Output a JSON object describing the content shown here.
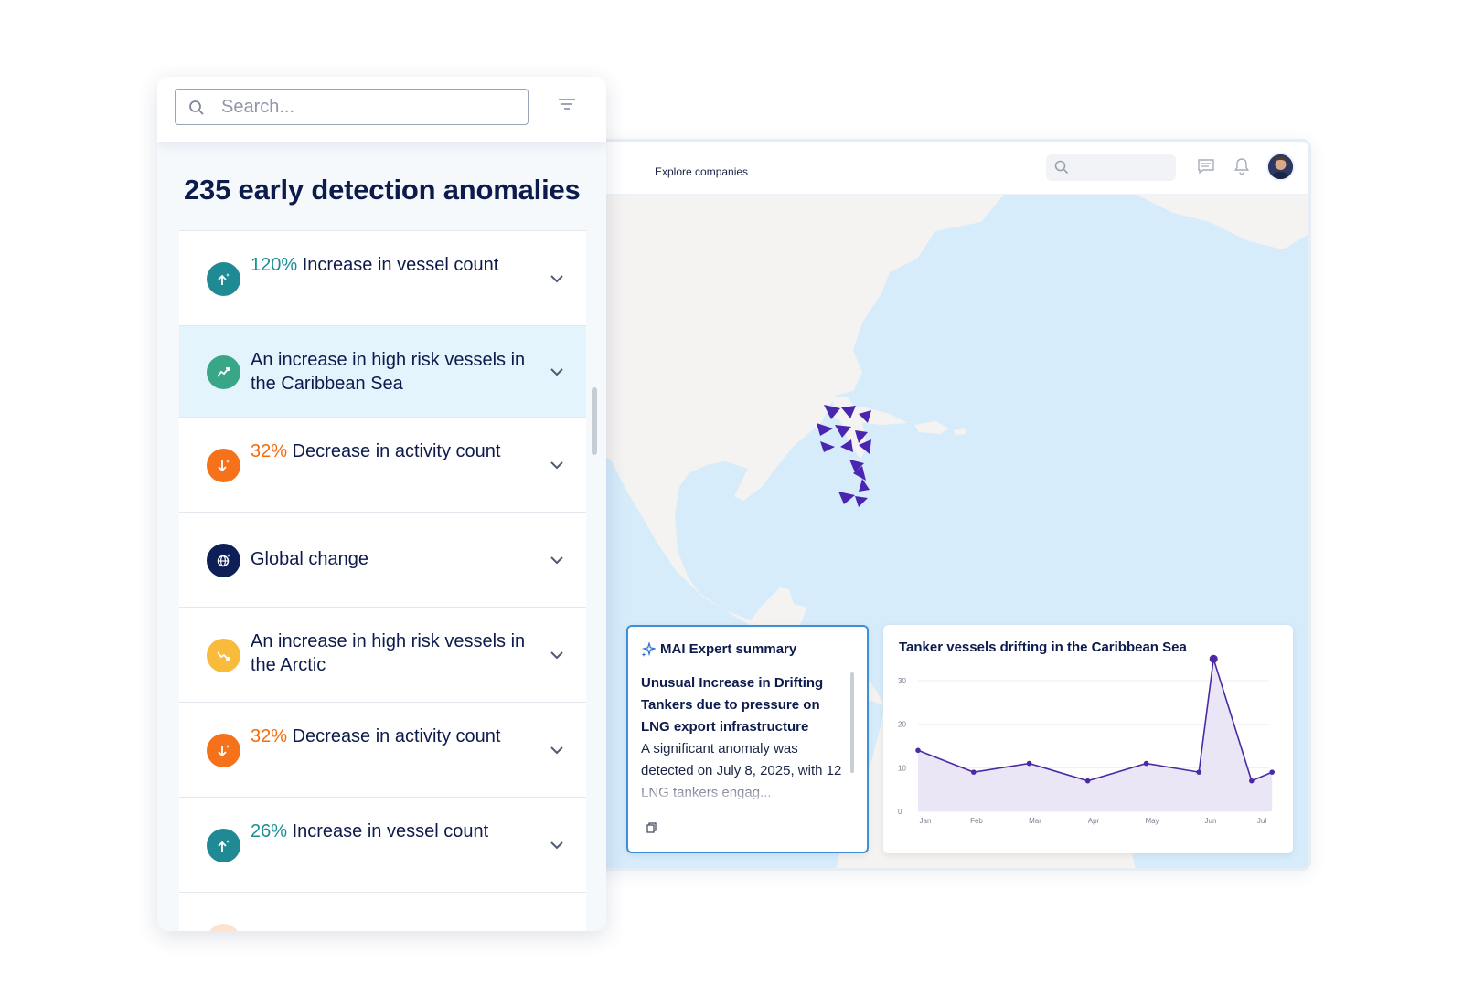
{
  "search": {
    "placeholder": "Search..."
  },
  "panel": {
    "title": "235 early detection anomalies",
    "items": [
      {
        "pct": "120%",
        "label": " Increase in vessel count",
        "tone": "teal",
        "icon": "arrow-up-sparkle-icon",
        "color": "#1f8a94"
      },
      {
        "pct": "",
        "label": "An increase in high risk vessels in the Caribbean Sea",
        "tone": "",
        "icon": "trend-up-icon",
        "color": "#3aa688"
      },
      {
        "pct": "32%",
        "label": " Decrease in activity count",
        "tone": "orange",
        "icon": "arrow-down-sparkle-icon",
        "color": "#f6721a"
      },
      {
        "pct": "",
        "label": "Global change",
        "tone": "",
        "icon": "globe-sparkle-icon",
        "color": "#0e1e57"
      },
      {
        "pct": "",
        "label": "An increase in high risk vessels in the Arctic",
        "tone": "",
        "icon": "trend-down-icon",
        "color": "#f8bb3b"
      },
      {
        "pct": "32%",
        "label": " Decrease in activity count",
        "tone": "orange",
        "icon": "arrow-down-sparkle-icon",
        "color": "#f6721a"
      },
      {
        "pct": "26%",
        "label": " Increase in vessel count",
        "tone": "teal",
        "icon": "arrow-up-sparkle-icon",
        "color": "#1f8a94"
      }
    ]
  },
  "topbar": {
    "explore_label": "Explore companies"
  },
  "summary": {
    "title": "MAI Expert  summary",
    "headline": "Unusual Increase in Drifting Tankers due to pressure on LNG export infrastructure",
    "body": "A significant anomaly was detected on July 8, 2025, with 12 LNG tankers engag..."
  },
  "chart_data": {
    "type": "area",
    "title": "Tanker vessels drifting in the Caribbean Sea",
    "x": [
      "Jan",
      "Feb",
      "Mar",
      "Apr",
      "May",
      "Jun",
      "Jul"
    ],
    "xlabels": [
      "Jan",
      "Feb",
      "Mar",
      "Apr",
      "May",
      "Jun",
      "Jul"
    ],
    "yticks": [
      0,
      10,
      20,
      30
    ],
    "ylim": [
      0,
      34
    ],
    "points": [
      {
        "x": 0.0,
        "y": 14
      },
      {
        "x": 0.95,
        "y": 9
      },
      {
        "x": 1.9,
        "y": 11
      },
      {
        "x": 2.9,
        "y": 7
      },
      {
        "x": 3.9,
        "y": 11
      },
      {
        "x": 4.8,
        "y": 9
      },
      {
        "x": 5.05,
        "y": 35
      },
      {
        "x": 5.7,
        "y": 7
      },
      {
        "x": 6.05,
        "y": 9
      }
    ],
    "line_color": "#4b2aa3",
    "fill_color": "#ebe6f6",
    "grid": true
  }
}
